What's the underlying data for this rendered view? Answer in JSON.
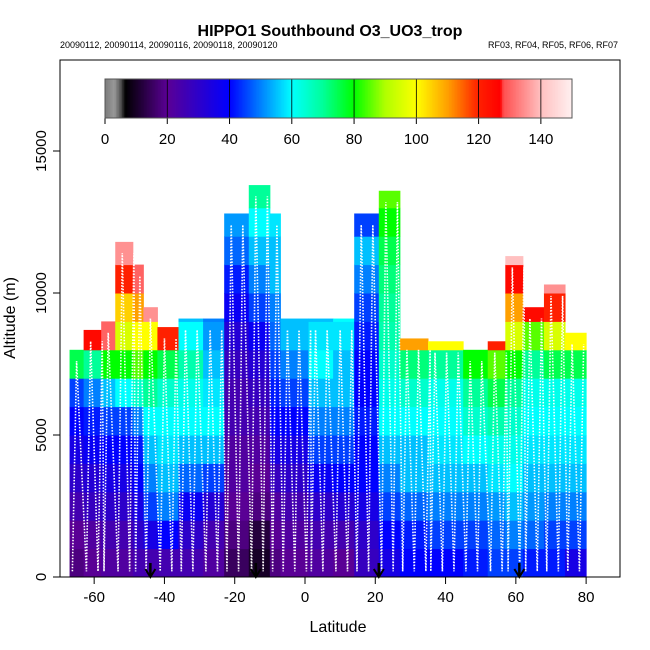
{
  "chart_data": {
    "type": "heatmap",
    "title": "HIPPO1 Southbound O3_UO3_trop",
    "subtitle_left": "20090112, 20090114, 20090116, 20090118, 20090120",
    "subtitle_right": "RF03, RF04, RF05, RF06, RF07",
    "xlabel": "Latitude",
    "ylabel": "Altitude (m)",
    "xlim": [
      -69.7,
      89.6
    ],
    "ylim": [
      0,
      18200
    ],
    "xticks": [
      -60,
      -40,
      -20,
      0,
      20,
      40,
      60,
      80
    ],
    "yticks": [
      0,
      5000,
      10000,
      15000
    ],
    "colorbar": {
      "range": [
        0,
        150
      ],
      "ticks": [
        0,
        20,
        40,
        60,
        80,
        100,
        120,
        140
      ],
      "stops": [
        [
          0,
          "#7a7a7a"
        ],
        [
          3,
          "#9a9a9a"
        ],
        [
          5,
          "#555555"
        ],
        [
          6.5,
          "#000000"
        ],
        [
          20,
          "#5a0095"
        ],
        [
          40,
          "#0000ff"
        ],
        [
          50,
          "#0080ff"
        ],
        [
          60,
          "#00ffff"
        ],
        [
          70,
          "#00ff99"
        ],
        [
          80,
          "#00ff00"
        ],
        [
          90,
          "#b0ff00"
        ],
        [
          100,
          "#ffff00"
        ],
        [
          110,
          "#ffa000"
        ],
        [
          120,
          "#ff2000"
        ],
        [
          127,
          "#ff0000"
        ],
        [
          128,
          "#ff5050"
        ],
        [
          140,
          "#ffc0c0"
        ],
        [
          150,
          "#fff0f0"
        ]
      ]
    },
    "altitude_bin_m": 1000,
    "columns": [
      {
        "lat": [
          -67,
          -63
        ],
        "top": 8000,
        "o3": [
          18,
          20,
          25,
          30,
          35,
          40,
          45,
          75
        ]
      },
      {
        "lat": [
          -63,
          -58
        ],
        "top": 8700,
        "o3": [
          20,
          22,
          28,
          32,
          38,
          42,
          50,
          70,
          125
        ]
      },
      {
        "lat": [
          -58,
          -54
        ],
        "top": 9000,
        "o3": [
          22,
          25,
          30,
          35,
          40,
          45,
          55,
          80,
          130
        ]
      },
      {
        "lat": [
          -54,
          -49
        ],
        "top": 11800,
        "o3": [
          22,
          25,
          30,
          35,
          40,
          45,
          60,
          80,
          95,
          105,
          120,
          135
        ]
      },
      {
        "lat": [
          -49,
          -46
        ],
        "top": 11000,
        "o3": [
          25,
          30,
          35,
          40,
          42,
          50,
          65,
          85,
          100,
          110,
          130
        ]
      },
      {
        "lat": [
          -46,
          -42
        ],
        "top": 9500,
        "o3": [
          25,
          35,
          45,
          50,
          55,
          60,
          70,
          80,
          100,
          135
        ]
      },
      {
        "lat": [
          -42,
          -36
        ],
        "top": 8800,
        "o3": [
          25,
          40,
          50,
          55,
          58,
          60,
          65,
          75,
          120
        ]
      },
      {
        "lat": [
          -36,
          -29
        ],
        "top": 9100,
        "o3": [
          25,
          30,
          38,
          48,
          55,
          60,
          62,
          68,
          60,
          55
        ]
      },
      {
        "lat": [
          -29,
          -23
        ],
        "top": 9100,
        "o3": [
          22,
          25,
          32,
          45,
          55,
          60,
          58,
          55,
          52,
          50
        ]
      },
      {
        "lat": [
          -23,
          -16
        ],
        "top": 12800,
        "o3": [
          15,
          18,
          20,
          22,
          22,
          25,
          25,
          28,
          32,
          38,
          42,
          48,
          52
        ]
      },
      {
        "lat": [
          -16,
          -10
        ],
        "top": 13800,
        "o3": [
          10,
          12,
          18,
          20,
          22,
          25,
          28,
          32,
          38,
          45,
          50,
          55,
          60,
          70
        ]
      },
      {
        "lat": [
          -10,
          -7
        ],
        "top": 12800,
        "o3": [
          18,
          20,
          22,
          28,
          35,
          40,
          42,
          45,
          48,
          50,
          55,
          55,
          58
        ]
      },
      {
        "lat": [
          -7,
          1
        ],
        "top": 9100,
        "o3": [
          20,
          22,
          25,
          30,
          35,
          40,
          45,
          50,
          55,
          55
        ]
      },
      {
        "lat": [
          1,
          8
        ],
        "top": 9100,
        "o3": [
          22,
          25,
          30,
          38,
          45,
          50,
          55,
          60,
          58,
          55
        ]
      },
      {
        "lat": [
          8,
          14
        ],
        "top": 9100,
        "o3": [
          20,
          25,
          32,
          40,
          45,
          50,
          55,
          55,
          58,
          60
        ]
      },
      {
        "lat": [
          14,
          21
        ],
        "top": 12800,
        "o3": [
          28,
          30,
          35,
          40,
          40,
          42,
          40,
          40,
          42,
          45,
          50,
          55,
          45
        ]
      },
      {
        "lat": [
          21,
          27
        ],
        "top": 13600,
        "o3": [
          35,
          40,
          45,
          50,
          55,
          60,
          62,
          65,
          68,
          70,
          72,
          75,
          80,
          85
        ]
      },
      {
        "lat": [
          27,
          35
        ],
        "top": 8400,
        "o3": [
          40,
          42,
          48,
          55,
          55,
          60,
          65,
          72,
          110
        ]
      },
      {
        "lat": [
          35,
          45
        ],
        "top": 8300,
        "o3": [
          40,
          45,
          50,
          55,
          58,
          60,
          62,
          70,
          100
        ]
      },
      {
        "lat": [
          45,
          52
        ],
        "top": 8000,
        "o3": [
          42,
          45,
          50,
          55,
          60,
          65,
          70,
          80,
          125
        ]
      },
      {
        "lat": [
          52,
          57
        ],
        "top": 8300,
        "o3": [
          45,
          48,
          52,
          58,
          62,
          68,
          75,
          85,
          120
        ]
      },
      {
        "lat": [
          57,
          62
        ],
        "top": 11300,
        "o3": [
          45,
          50,
          55,
          60,
          62,
          65,
          70,
          80,
          95,
          110,
          125,
          140
        ]
      },
      {
        "lat": [
          62,
          68
        ],
        "top": 9500,
        "o3": [
          42,
          48,
          52,
          55,
          58,
          60,
          62,
          70,
          85,
          125
        ]
      },
      {
        "lat": [
          68,
          74
        ],
        "top": 10300,
        "o3": [
          42,
          45,
          50,
          55,
          58,
          60,
          62,
          75,
          95,
          120,
          135
        ]
      },
      {
        "lat": [
          74,
          80
        ],
        "top": 8600,
        "o3": [
          35,
          45,
          50,
          55,
          58,
          60,
          62,
          75,
          100
        ]
      }
    ],
    "flight_markers_lat": [
      -44,
      -14,
      21,
      61
    ]
  }
}
